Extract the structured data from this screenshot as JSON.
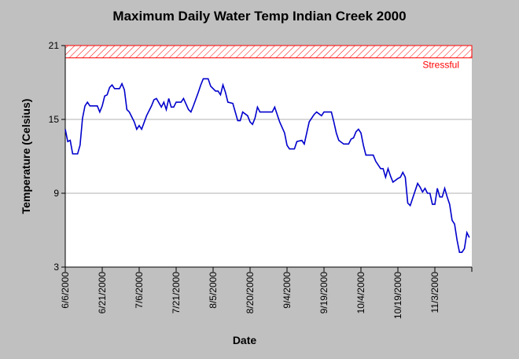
{
  "chart_data": {
    "type": "line",
    "title": "Maximum Daily Water Temp Indian Creek 2000",
    "x_label": "Date",
    "y_label": "Temperature (Celsius)",
    "xlim": [
      "2000-06-06",
      "2000-11-18"
    ],
    "xticks": [
      {
        "value": "2000-06-06",
        "label": "6/6/2000"
      },
      {
        "value": "2000-06-21",
        "label": "6/21/2000"
      },
      {
        "value": "2000-07-06",
        "label": "7/6/2000"
      },
      {
        "value": "2000-07-21",
        "label": "7/21/2000"
      },
      {
        "value": "2000-08-05",
        "label": "8/5/2000"
      },
      {
        "value": "2000-08-20",
        "label": "8/20/2000"
      },
      {
        "value": "2000-09-04",
        "label": "9/4/2000"
      },
      {
        "value": "2000-09-19",
        "label": "9/19/2000"
      },
      {
        "value": "2000-10-04",
        "label": "10/4/2000"
      },
      {
        "value": "2000-10-19",
        "label": "10/19/2000"
      },
      {
        "value": "2000-11-03",
        "label": "11/3/2000"
      },
      {
        "value": "2000-11-18",
        "label": null
      }
    ],
    "ylim": [
      3,
      21
    ],
    "yticks": [
      3,
      9,
      15,
      21
    ],
    "grid": true,
    "bands": [
      {
        "label": "Stressful",
        "y0": 20,
        "y1": 21,
        "color": "#ff0000"
      }
    ],
    "x": [
      "2000-06-06",
      "2000-06-07",
      "2000-06-08",
      "2000-06-09",
      "2000-06-11",
      "2000-06-12",
      "2000-06-13",
      "2000-06-14",
      "2000-06-15",
      "2000-06-16",
      "2000-06-19",
      "2000-06-20",
      "2000-06-21",
      "2000-06-22",
      "2000-06-23",
      "2000-06-24",
      "2000-06-25",
      "2000-06-26",
      "2000-06-28",
      "2000-06-29",
      "2000-06-30",
      "2000-07-01",
      "2000-07-02",
      "2000-07-04",
      "2000-07-05",
      "2000-07-06",
      "2000-07-07",
      "2000-07-09",
      "2000-07-11",
      "2000-07-12",
      "2000-07-13",
      "2000-07-15",
      "2000-07-16",
      "2000-07-17",
      "2000-07-18",
      "2000-07-19",
      "2000-07-20",
      "2000-07-21",
      "2000-07-23",
      "2000-07-24",
      "2000-07-26",
      "2000-07-27",
      "2000-07-28",
      "2000-07-30",
      "2000-07-31",
      "2000-08-01",
      "2000-08-03",
      "2000-08-04",
      "2000-08-06",
      "2000-08-07",
      "2000-08-08",
      "2000-08-09",
      "2000-08-10",
      "2000-08-11",
      "2000-08-13",
      "2000-08-14",
      "2000-08-15",
      "2000-08-16",
      "2000-08-17",
      "2000-08-19",
      "2000-08-20",
      "2000-08-21",
      "2000-08-22",
      "2000-08-23",
      "2000-08-24",
      "2000-08-26",
      "2000-08-29",
      "2000-08-30",
      "2000-08-31",
      "2000-09-01",
      "2000-09-03",
      "2000-09-04",
      "2000-09-05",
      "2000-09-07",
      "2000-09-08",
      "2000-09-10",
      "2000-09-11",
      "2000-09-12",
      "2000-09-13",
      "2000-09-15",
      "2000-09-16",
      "2000-09-18",
      "2000-09-19",
      "2000-09-22",
      "2000-09-23",
      "2000-09-24",
      "2000-09-25",
      "2000-09-27",
      "2000-09-29",
      "2000-09-30",
      "2000-10-01",
      "2000-10-02",
      "2000-10-03",
      "2000-10-04",
      "2000-10-05",
      "2000-10-06",
      "2000-10-09",
      "2000-10-10",
      "2000-10-12",
      "2000-10-13",
      "2000-10-14",
      "2000-10-15",
      "2000-10-16",
      "2000-10-17",
      "2000-10-19",
      "2000-10-20",
      "2000-10-21",
      "2000-10-22",
      "2000-10-23",
      "2000-10-24",
      "2000-10-25",
      "2000-10-27",
      "2000-10-28",
      "2000-10-29",
      "2000-10-30",
      "2000-10-31",
      "2000-11-01",
      "2000-11-02",
      "2000-11-03",
      "2000-11-04",
      "2000-11-05",
      "2000-11-06",
      "2000-11-07",
      "2000-11-08",
      "2000-11-09",
      "2000-11-10",
      "2000-11-11",
      "2000-11-12",
      "2000-11-13",
      "2000-11-14",
      "2000-11-15",
      "2000-11-16",
      "2000-11-17"
    ],
    "series": [
      {
        "name": "Maximum Daily Water Temp",
        "color": "#0000cc",
        "values": [
          14.2,
          13.2,
          13.3,
          12.2,
          12.2,
          12.9,
          15.1,
          16.1,
          16.4,
          16.1,
          16.1,
          15.6,
          16.1,
          16.9,
          17.0,
          17.6,
          17.8,
          17.5,
          17.5,
          17.9,
          17.4,
          15.8,
          15.6,
          14.8,
          14.2,
          14.5,
          14.2,
          15.3,
          16.1,
          16.6,
          16.7,
          16.0,
          16.4,
          15.8,
          16.7,
          16.0,
          16.0,
          16.4,
          16.4,
          16.7,
          15.8,
          15.6,
          16.1,
          17.2,
          17.8,
          18.3,
          18.3,
          17.7,
          17.3,
          17.3,
          17.0,
          17.8,
          17.2,
          16.4,
          16.3,
          15.6,
          14.9,
          14.9,
          15.6,
          15.3,
          14.8,
          14.6,
          15.1,
          16.0,
          15.6,
          15.6,
          15.6,
          16.0,
          15.4,
          14.8,
          13.9,
          12.9,
          12.6,
          12.6,
          13.2,
          13.3,
          13.0,
          13.9,
          14.8,
          15.4,
          15.6,
          15.3,
          15.6,
          15.6,
          14.8,
          13.9,
          13.3,
          13.0,
          13.0,
          13.4,
          13.5,
          14.0,
          14.2,
          13.9,
          12.9,
          12.1,
          12.1,
          11.6,
          11.0,
          11.0,
          10.3,
          11.0,
          10.4,
          9.9,
          10.2,
          10.3,
          10.7,
          10.3,
          8.2,
          8.0,
          8.6,
          9.8,
          9.5,
          9.1,
          9.4,
          9.0,
          9.0,
          8.1,
          8.1,
          9.4,
          8.7,
          8.7,
          9.4,
          8.7,
          8.1,
          6.8,
          6.5,
          5.2,
          4.2,
          4.2,
          4.5,
          5.8,
          5.4
        ]
      }
    ]
  }
}
